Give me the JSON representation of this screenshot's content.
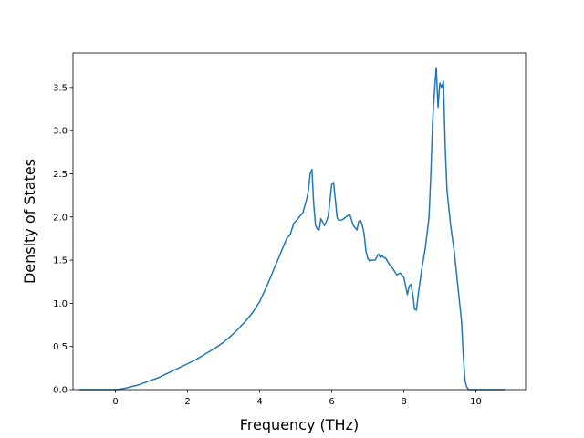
{
  "chart_data": {
    "type": "line",
    "title": "",
    "xlabel": "Frequency (THz)",
    "ylabel": "Density of States",
    "xlim": [
      -1.18,
      11.38
    ],
    "ylim": [
      0.0,
      3.9
    ],
    "xticks": [
      0,
      2,
      4,
      6,
      8,
      10
    ],
    "xtick_labels": [
      "0",
      "2",
      "4",
      "6",
      "8",
      "10"
    ],
    "yticks": [
      0.0,
      0.5,
      1.0,
      1.5,
      2.0,
      2.5,
      3.0,
      3.5
    ],
    "ytick_labels": [
      "0.0",
      "0.5",
      "1.0",
      "1.5",
      "2.0",
      "2.5",
      "3.0",
      "3.5"
    ],
    "grid": false,
    "legend": "none",
    "colors": {
      "line": "#1f77b4",
      "axis": "#000000",
      "background": "#ffffff"
    },
    "series": [
      {
        "x": [
          -1.0,
          -0.5,
          0.0,
          0.2,
          0.4,
          0.6,
          0.8,
          1.0,
          1.2,
          1.4,
          1.6,
          1.8,
          2.0,
          2.2,
          2.4,
          2.6,
          2.8,
          3.0,
          3.2,
          3.4,
          3.6,
          3.8,
          4.0,
          4.2,
          4.35,
          4.45,
          4.6,
          4.7,
          4.75,
          4.85,
          4.95,
          5.0,
          5.1,
          5.2,
          5.3,
          5.35,
          5.4,
          5.45,
          5.5,
          5.55,
          5.6,
          5.65,
          5.7,
          5.8,
          5.9,
          6.0,
          6.05,
          6.1,
          6.15,
          6.2,
          6.3,
          6.4,
          6.5,
          6.6,
          6.7,
          6.75,
          6.8,
          6.85,
          6.9,
          6.95,
          7.0,
          7.05,
          7.1,
          7.2,
          7.3,
          7.35,
          7.4,
          7.45,
          7.5,
          7.6,
          7.7,
          7.8,
          7.9,
          8.0,
          8.05,
          8.1,
          8.15,
          8.2,
          8.25,
          8.3,
          8.35,
          8.4,
          8.45,
          8.5,
          8.6,
          8.7,
          8.75,
          8.8,
          8.85,
          8.9,
          8.95,
          9.0,
          9.05,
          9.1,
          9.15,
          9.2,
          9.3,
          9.4,
          9.5,
          9.6,
          9.65,
          9.7,
          9.75,
          9.8,
          9.9,
          10.0,
          10.5,
          10.8
        ],
        "y": [
          0.0,
          0.0,
          0.0,
          0.01,
          0.03,
          0.05,
          0.08,
          0.11,
          0.14,
          0.18,
          0.22,
          0.26,
          0.3,
          0.34,
          0.39,
          0.44,
          0.49,
          0.55,
          0.62,
          0.7,
          0.79,
          0.89,
          1.02,
          1.2,
          1.35,
          1.45,
          1.6,
          1.7,
          1.75,
          1.8,
          1.93,
          1.95,
          2.0,
          2.05,
          2.2,
          2.3,
          2.5,
          2.55,
          2.15,
          1.9,
          1.86,
          1.85,
          1.98,
          1.9,
          2.0,
          2.38,
          2.4,
          2.2,
          1.99,
          1.96,
          1.97,
          2.0,
          2.03,
          1.9,
          1.85,
          1.95,
          1.96,
          1.9,
          1.8,
          1.6,
          1.52,
          1.49,
          1.5,
          1.5,
          1.57,
          1.53,
          1.55,
          1.53,
          1.52,
          1.45,
          1.4,
          1.33,
          1.35,
          1.3,
          1.2,
          1.1,
          1.2,
          1.22,
          1.1,
          0.93,
          0.92,
          1.1,
          1.25,
          1.4,
          1.65,
          2.0,
          2.5,
          3.1,
          3.45,
          3.73,
          3.27,
          3.55,
          3.5,
          3.57,
          2.8,
          2.3,
          1.9,
          1.6,
          1.2,
          0.8,
          0.4,
          0.1,
          0.03,
          0.0,
          0.0,
          0.0,
          0.0,
          0.0
        ]
      }
    ]
  }
}
